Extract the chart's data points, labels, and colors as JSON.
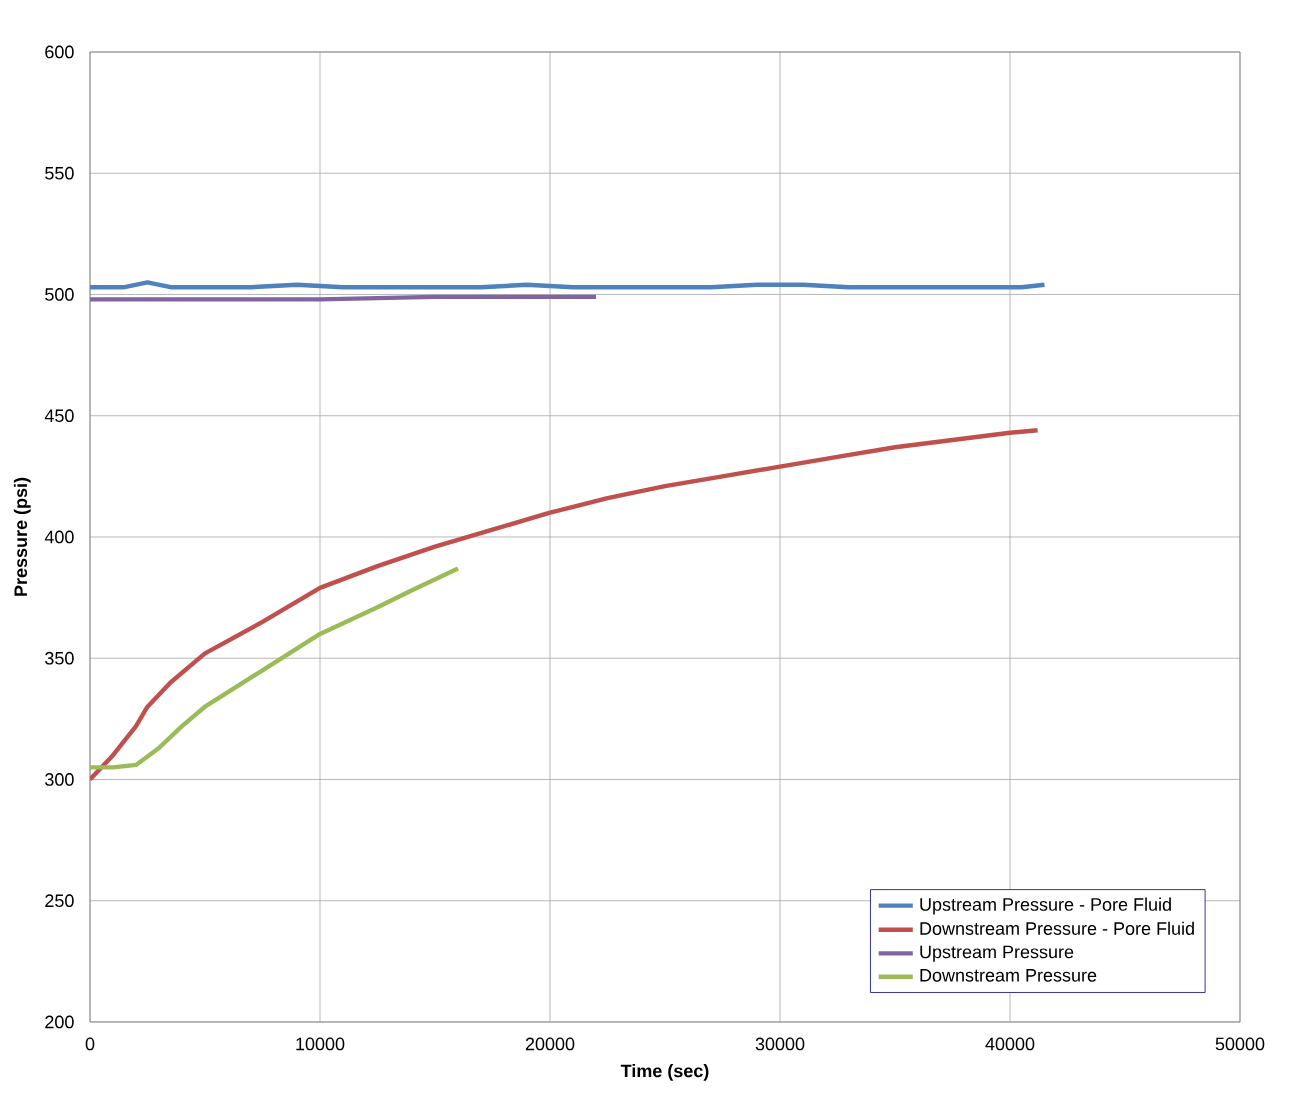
{
  "chart_data": {
    "type": "line",
    "xlabel": "Time (sec)",
    "ylabel": "Pressure (psi)",
    "xlim": [
      0,
      50000
    ],
    "ylim": [
      200,
      600
    ],
    "xticks": [
      0,
      10000,
      20000,
      30000,
      40000,
      50000
    ],
    "yticks": [
      200,
      250,
      300,
      350,
      400,
      450,
      500,
      550,
      600
    ],
    "grid": true,
    "legend": "bottom right",
    "marker": "none",
    "line_style": "solid",
    "series": [
      {
        "name": "Upstream Pressure - Pore Fluid",
        "color": "#4f81bd",
        "x": [
          0,
          1500,
          2500,
          3500,
          5000,
          7000,
          9000,
          11000,
          13000,
          15000,
          17000,
          19000,
          21000,
          23000,
          25000,
          27000,
          29000,
          31000,
          33000,
          35000,
          37000,
          39000,
          40500,
          41500
        ],
        "values": [
          503,
          503,
          505,
          503,
          503,
          503,
          504,
          503,
          503,
          503,
          503,
          504,
          503,
          503,
          503,
          503,
          504,
          504,
          503,
          503,
          503,
          503,
          503,
          504
        ]
      },
      {
        "name": "Downstream Pressure - Pore Fluid",
        "color": "#c0504d",
        "x": [
          0,
          1000,
          2000,
          2500,
          3500,
          5000,
          7500,
          10000,
          12500,
          15000,
          17500,
          20000,
          22500,
          25000,
          27500,
          30000,
          32500,
          35000,
          37500,
          40000,
          41200
        ],
        "values": [
          300,
          310,
          322,
          330,
          340,
          352,
          365,
          379,
          388,
          396,
          403,
          410,
          416,
          421,
          425,
          429,
          433,
          437,
          440,
          443,
          444
        ]
      },
      {
        "name": "Upstream Pressure",
        "color": "#8064a2",
        "x": [
          0,
          5000,
          10000,
          15000,
          20000,
          22000
        ],
        "values": [
          498,
          498,
          498,
          499,
          499,
          499
        ]
      },
      {
        "name": "Downstream Pressure",
        "color": "#9bbb59",
        "x": [
          0,
          1000,
          2000,
          3000,
          4000,
          5000,
          7500,
          10000,
          12500,
          14000,
          16000
        ],
        "values": [
          305,
          305,
          306,
          313,
          322,
          330,
          345,
          360,
          371,
          378,
          387
        ]
      }
    ]
  }
}
